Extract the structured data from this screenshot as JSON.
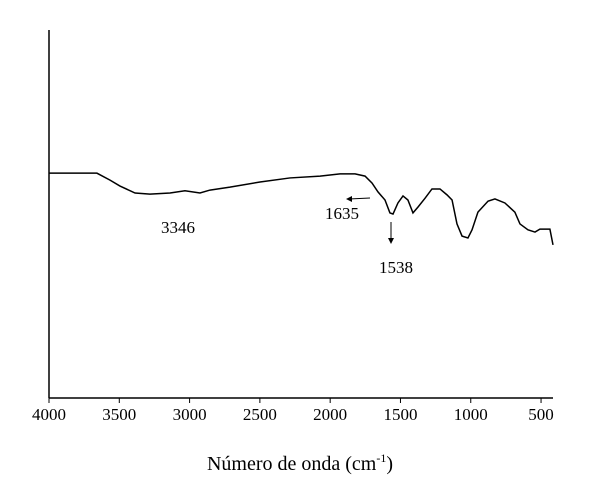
{
  "chart_data": {
    "type": "line",
    "xlabel": [
      "Número de onda (cm",
      "-1",
      ")"
    ],
    "xlim": [
      4000,
      415
    ],
    "xticks": [
      4000,
      3500,
      3000,
      2500,
      2000,
      1500,
      1000,
      500
    ],
    "ylim": [
      0,
      100
    ],
    "annotations": [
      "3346",
      "1635",
      "1538"
    ],
    "series": [
      {
        "color": "#000000",
        "x": [
          4000,
          3659,
          3566,
          3495,
          3388,
          3282,
          3139,
          3033,
          2926,
          2855,
          2713,
          2499,
          2286,
          2072,
          1930,
          1823,
          1752,
          1702,
          1660,
          1610,
          1575,
          1553,
          1518,
          1482,
          1447,
          1411,
          1375,
          1325,
          1276,
          1219,
          1169,
          1133,
          1098,
          1062,
          1020,
          991,
          949,
          877,
          828,
          757,
          686,
          650,
          593,
          543,
          508,
          437,
          415
        ],
        "values": [
          61.1,
          61.1,
          59.2,
          57.6,
          55.7,
          55.4,
          55.7,
          56.3,
          55.7,
          56.5,
          57.3,
          58.7,
          59.8,
          60.3,
          60.9,
          60.9,
          60.3,
          58.4,
          56.0,
          53.8,
          50.3,
          50.0,
          53.0,
          54.9,
          53.8,
          50.3,
          51.9,
          54.3,
          56.8,
          56.8,
          55.2,
          53.8,
          47.3,
          44.0,
          43.5,
          45.7,
          50.5,
          53.5,
          54.1,
          53.0,
          50.5,
          47.3,
          45.7,
          45.1,
          45.9,
          45.9,
          41.6
        ]
      }
    ]
  }
}
